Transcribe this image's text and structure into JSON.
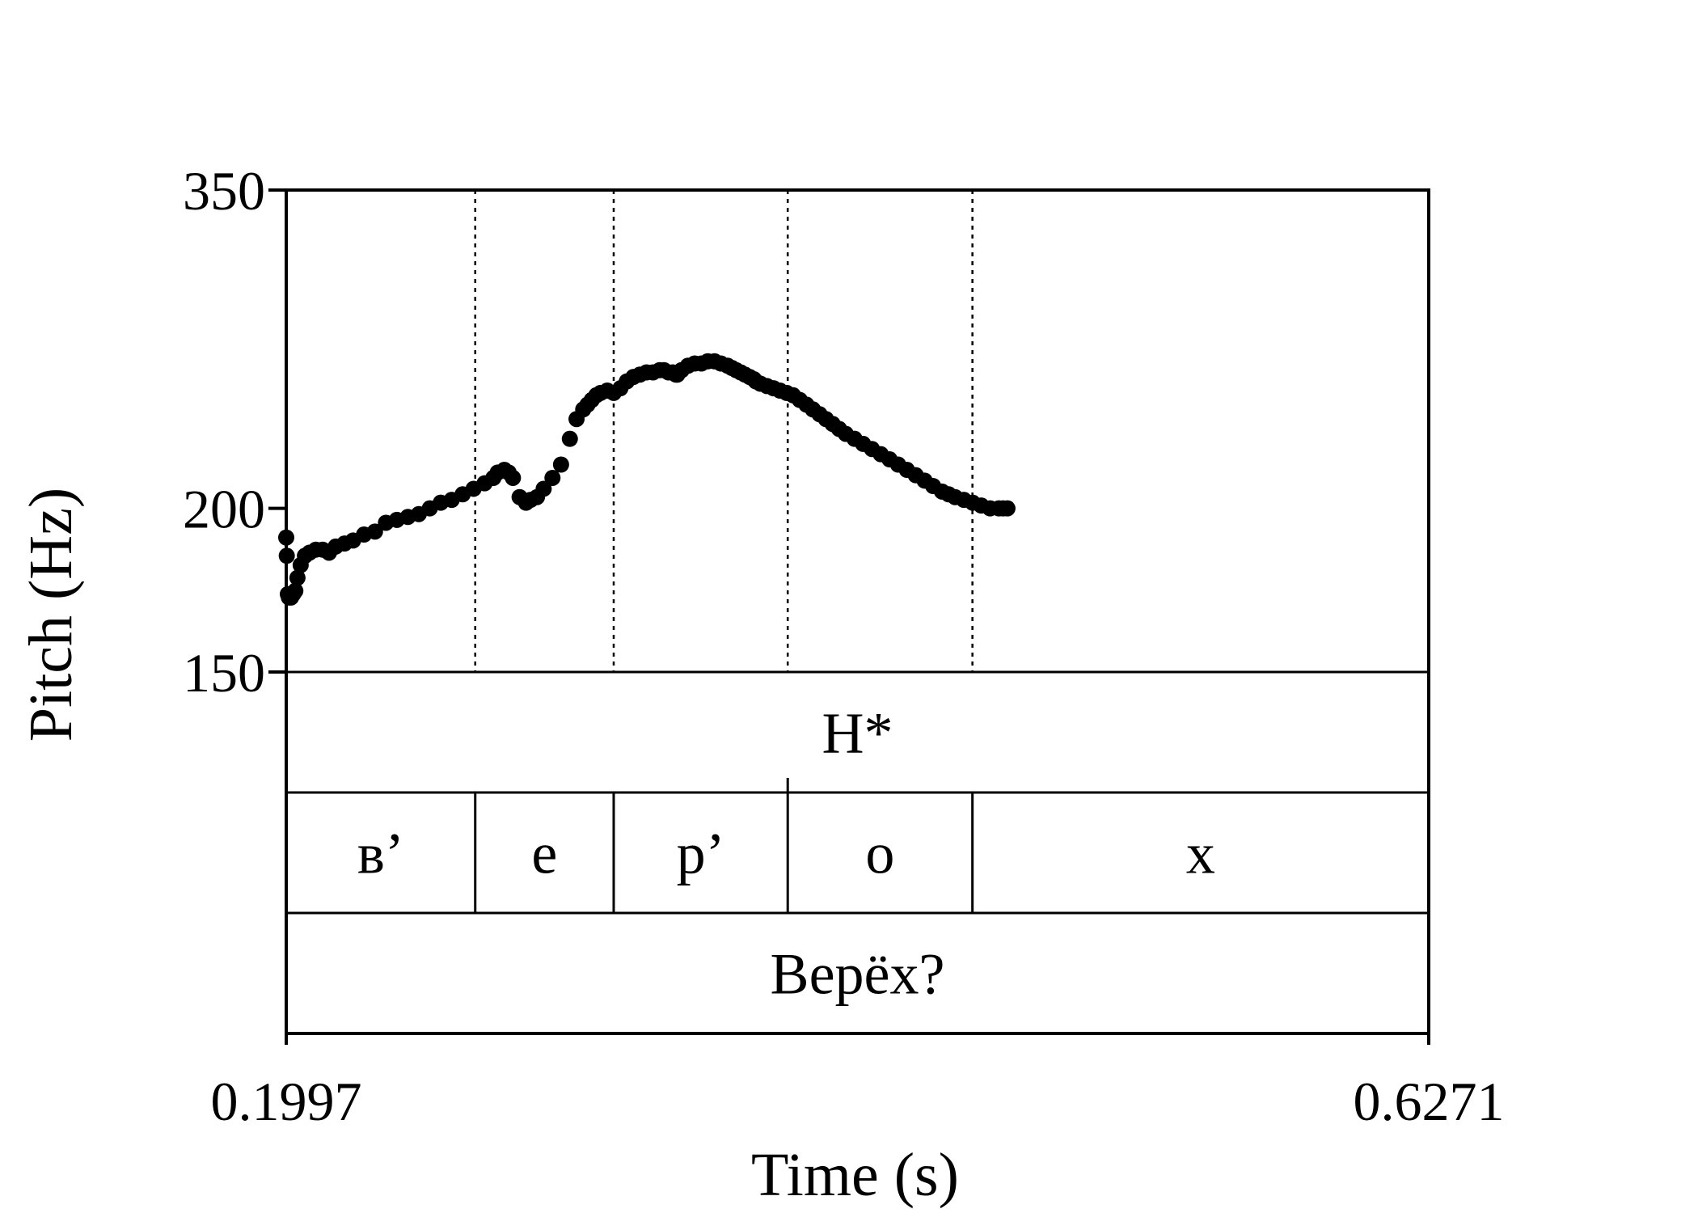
{
  "chart_data": {
    "type": "line",
    "xlabel": "Time (s)",
    "ylabel": "Pitch (Hz)",
    "xlim": [
      0.1997,
      0.6271
    ],
    "ylim": [
      150,
      350
    ],
    "y_scale": "log",
    "x_tick_labels": [
      "0.1997",
      "0.6271"
    ],
    "y_ticks": [
      150,
      200,
      350
    ],
    "y_tick_labels": [
      "150",
      "200",
      "350"
    ],
    "series": [
      {
        "style": "dots",
        "color": "#000000",
        "x": [
          0.1997,
          0.1999,
          0.2003,
          0.2007,
          0.2015,
          0.2023,
          0.2031,
          0.2039,
          0.2051,
          0.2067,
          0.2084,
          0.2108,
          0.2133,
          0.2157,
          0.2182,
          0.2215,
          0.2247,
          0.2288,
          0.2329,
          0.237,
          0.2411,
          0.2452,
          0.2493,
          0.2534,
          0.2575,
          0.2616,
          0.2657,
          0.2698,
          0.2739,
          0.2772,
          0.2788,
          0.2813,
          0.2829,
          0.2845,
          0.287,
          0.2894,
          0.2911,
          0.2935,
          0.296,
          0.2993,
          0.3025,
          0.3058,
          0.3083,
          0.3108,
          0.3124,
          0.314,
          0.3157,
          0.3173,
          0.3198,
          0.3222,
          0.3247,
          0.3271,
          0.3296,
          0.332,
          0.3345,
          0.3369,
          0.3394,
          0.341,
          0.3427,
          0.3443,
          0.3455,
          0.346,
          0.3476,
          0.35,
          0.3525,
          0.355,
          0.3574,
          0.3599,
          0.3623,
          0.3648,
          0.3664,
          0.368,
          0.3697,
          0.3713,
          0.373,
          0.3746,
          0.3754,
          0.3771,
          0.3795,
          0.382,
          0.3844,
          0.3869,
          0.3893,
          0.3918,
          0.3943,
          0.3967,
          0.3992,
          0.4016,
          0.4041,
          0.4065,
          0.409,
          0.4123,
          0.4155,
          0.4188,
          0.4221,
          0.4254,
          0.4286,
          0.4319,
          0.4352,
          0.4385,
          0.4417,
          0.445,
          0.4475,
          0.4499,
          0.4532,
          0.4565,
          0.4597,
          0.463,
          0.4663,
          0.4679,
          0.4695
        ],
        "y": [
          190,
          184,
          172,
          171,
          171,
          172,
          173,
          177,
          181,
          184,
          185,
          186,
          186,
          185,
          187,
          188,
          189,
          191,
          192,
          195,
          196,
          197,
          198,
          200,
          202,
          203,
          205,
          207,
          209,
          211,
          213,
          214,
          213,
          211,
          204,
          202,
          203,
          204,
          207,
          211,
          216,
          226,
          234,
          238,
          240,
          242,
          244,
          245,
          246,
          245,
          247,
          250,
          252,
          253,
          254,
          254,
          255,
          255,
          254,
          254,
          253,
          253,
          255,
          257,
          258,
          258,
          259,
          259,
          258,
          257,
          256,
          255,
          254,
          253,
          252,
          251,
          250,
          249,
          248,
          247,
          246,
          245,
          244,
          242,
          240,
          238,
          236,
          234,
          232,
          230,
          228,
          226,
          224,
          222,
          220,
          218,
          216,
          214,
          212,
          210,
          208,
          206,
          205,
          204,
          203,
          202,
          201,
          200,
          200,
          200,
          200
        ]
      }
    ],
    "boundaries": [
      0.2704,
      0.3222,
      0.3873,
      0.4564
    ],
    "tiers": [
      {
        "intervals": [
          {
            "start": 0.1997,
            "end": 0.6271,
            "label": "H*"
          }
        ]
      },
      {
        "intervals": [
          {
            "start": 0.1997,
            "end": 0.2704,
            "label": "в’"
          },
          {
            "start": 0.2704,
            "end": 0.3222,
            "label": "е"
          },
          {
            "start": 0.3222,
            "end": 0.3873,
            "label": "р’"
          },
          {
            "start": 0.3873,
            "end": 0.4564,
            "label": "о"
          },
          {
            "start": 0.4564,
            "end": 0.6271,
            "label": "х"
          }
        ]
      },
      {
        "intervals": [
          {
            "start": 0.1997,
            "end": 0.6271,
            "label": "Верёх?"
          }
        ]
      }
    ]
  }
}
